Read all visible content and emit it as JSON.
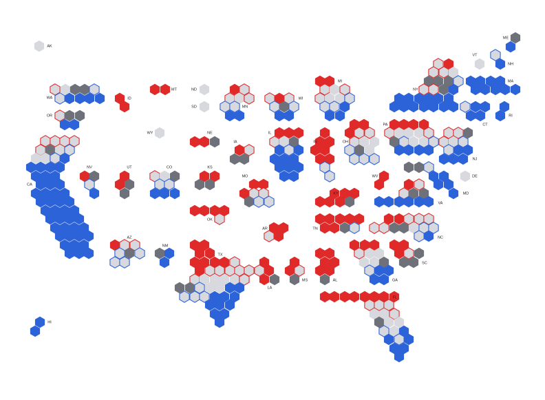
{
  "states": [
    {
      "label": "AK"
    },
    {
      "label": "WA"
    },
    {
      "label": "OR"
    },
    {
      "label": "CA"
    },
    {
      "label": "NV"
    },
    {
      "label": "ID"
    },
    {
      "label": "MT"
    },
    {
      "label": "WY"
    },
    {
      "label": "UT"
    },
    {
      "label": "CO"
    },
    {
      "label": "AZ"
    },
    {
      "label": "NM"
    },
    {
      "label": "ND"
    },
    {
      "label": "SD"
    },
    {
      "label": "NE"
    },
    {
      "label": "KS"
    },
    {
      "label": "OK"
    },
    {
      "label": "TX"
    },
    {
      "label": "MN"
    },
    {
      "label": "IA"
    },
    {
      "label": "MO"
    },
    {
      "label": "AR"
    },
    {
      "label": "LA"
    },
    {
      "label": "WI"
    },
    {
      "label": "IL"
    },
    {
      "label": "MI"
    },
    {
      "label": "IN"
    },
    {
      "label": "OH"
    },
    {
      "label": "KY"
    },
    {
      "label": "TN"
    },
    {
      "label": "MS"
    },
    {
      "label": "AL"
    },
    {
      "label": "GA"
    },
    {
      "label": "FL"
    },
    {
      "label": "SC"
    },
    {
      "label": "NC"
    },
    {
      "label": "VA"
    },
    {
      "label": "WV"
    },
    {
      "label": "PA"
    },
    {
      "label": "MD"
    },
    {
      "label": "DE"
    },
    {
      "label": "NJ"
    },
    {
      "label": "NY"
    },
    {
      "label": "CT"
    },
    {
      "label": "RI"
    },
    {
      "label": "MA"
    },
    {
      "label": "VT"
    },
    {
      "label": "NH"
    },
    {
      "label": "ME"
    },
    {
      "label": "HI"
    }
  ],
  "colors": {
    "red": "#e02a2a",
    "blue": "#2d63d8",
    "gray": "#6e717a",
    "light": "#d7d9de"
  }
}
